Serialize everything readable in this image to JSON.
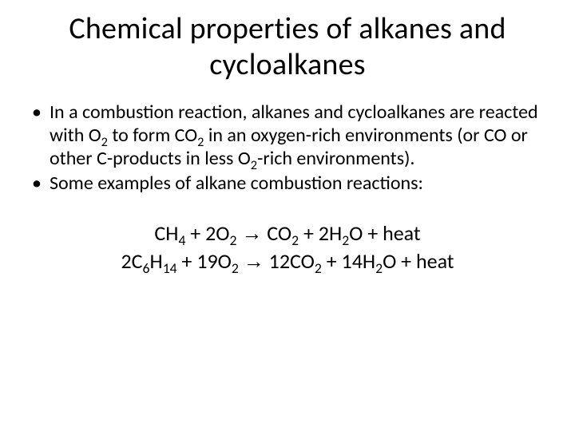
{
  "colors": {
    "background": "#ffffff",
    "text": "#000000"
  },
  "typography": {
    "title_fontsize": 38,
    "body_fontsize": 24,
    "equation_fontsize": 26,
    "font_family": "Calibri"
  },
  "title": "Chemical properties of alkanes and cycloalkanes",
  "bullets": [
    {
      "text_html": "In a combustion reaction, alkanes and cycloalkanes are reacted with O<sub>2</sub> to form CO<sub>2</sub> in an oxygen-rich environments (or CO or other C-products in less O<sub>2</sub>-rich environments)."
    },
    {
      "text_html": "Some examples of alkane combustion reactions:"
    }
  ],
  "equations": [
    {
      "text_html": "CH<sub>4</sub> + 2O<sub>2</sub> <span class=\"arrow\">&#8594;</span> CO<sub>2</sub> + 2H<sub>2</sub>O + heat"
    },
    {
      "text_html": "2C<sub>6</sub>H<sub>14</sub> + 19O<sub>2</sub> <span class=\"arrow\">&#8594;</span> 12CO<sub>2</sub> + 14H<sub>2</sub>O + heat"
    }
  ]
}
